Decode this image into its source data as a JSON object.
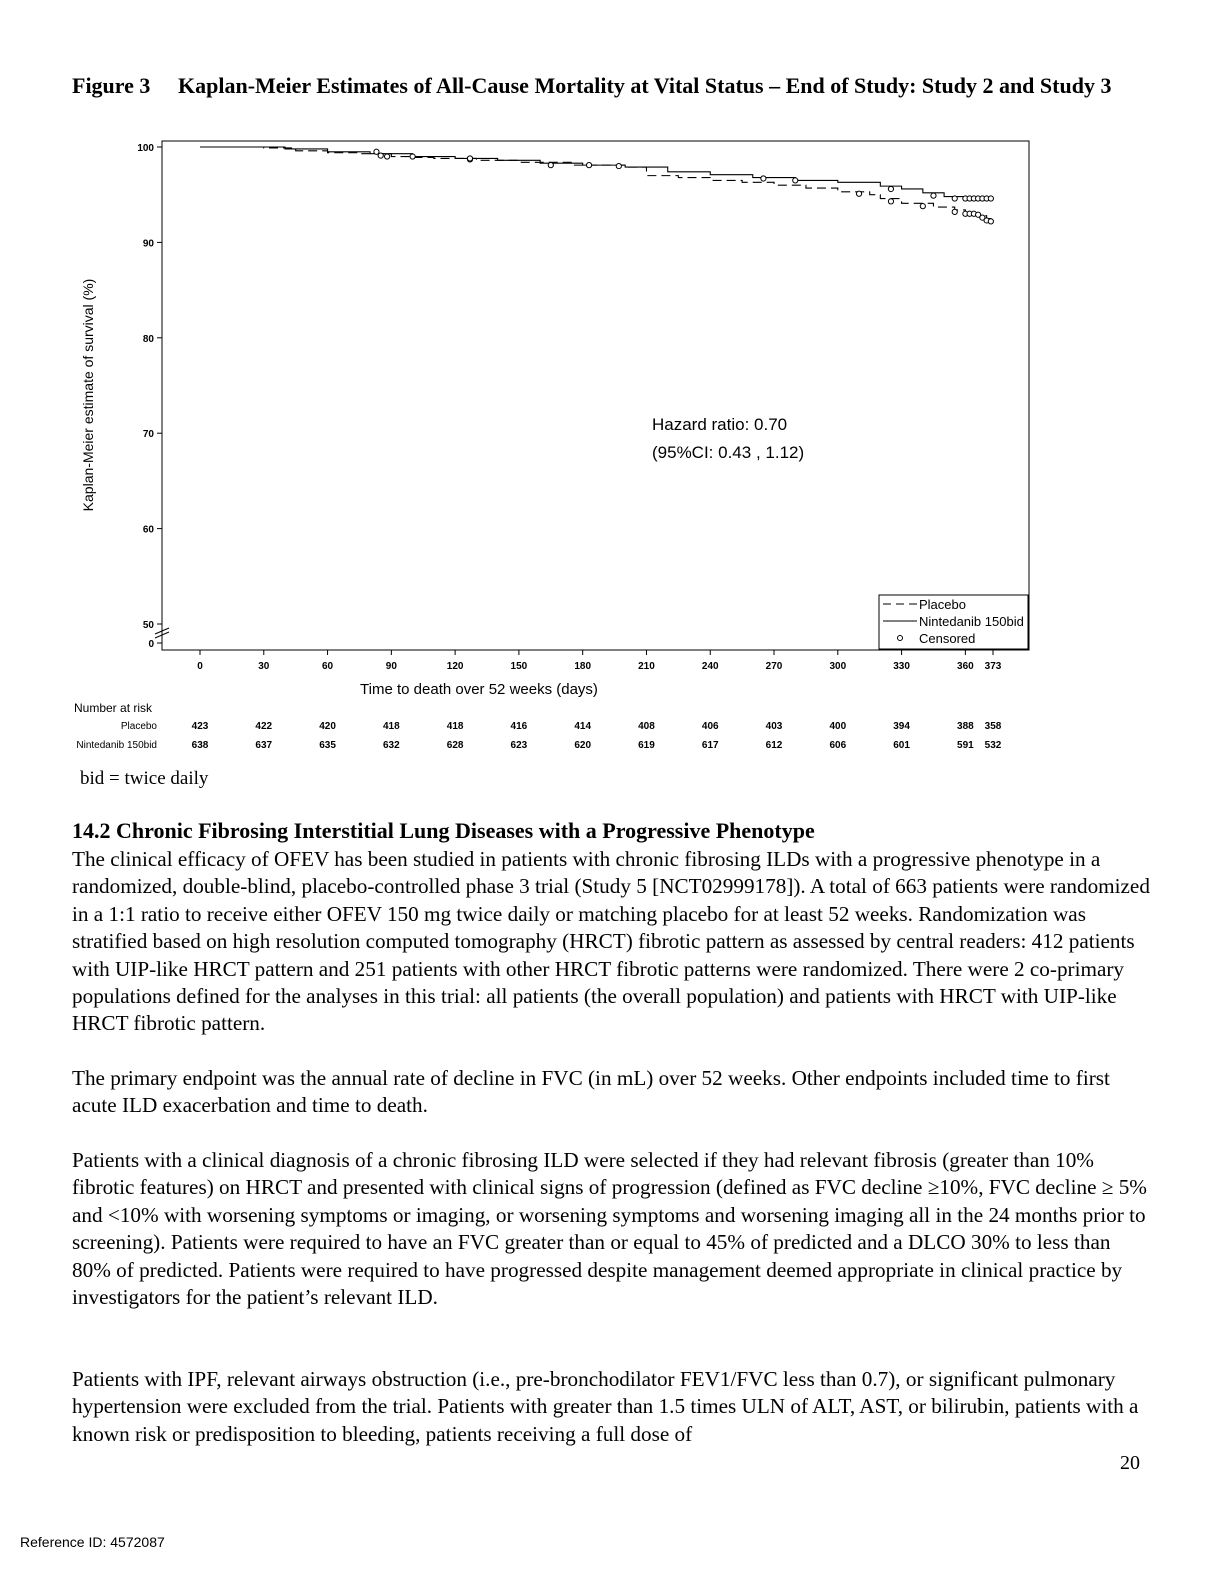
{
  "figure": {
    "number": "Figure 3",
    "title": "Kaplan-Meier Estimates of All-Cause Mortality at Vital Status – End of Study: Study 2 and Study 3"
  },
  "chart_data": {
    "type": "line",
    "title": "",
    "xlabel": "Time to death over 52 weeks (days)",
    "ylabel": "Kaplan-Meier estimate of survival (%)",
    "x_ticks": [
      "0",
      "30",
      "60",
      "90",
      "120",
      "150",
      "180",
      "210",
      "240",
      "270",
      "300",
      "330",
      "360",
      "373"
    ],
    "y_ticks": [
      "0",
      "50",
      "60",
      "70",
      "80",
      "90",
      "100"
    ],
    "ylim": [
      50,
      100
    ],
    "xlim": [
      0,
      373
    ],
    "y_axis_break": true,
    "annotation": {
      "line1": "Hazard ratio: 0.70",
      "line2": "(95%CI: 0.43 , 1.12)"
    },
    "legend": {
      "placement": "bottom-right",
      "entries": [
        "Placebo",
        "Nintedanib 150bid",
        "Censored"
      ]
    },
    "series": [
      {
        "name": "Placebo",
        "style": "dashed",
        "x": [
          0,
          20,
          30,
          45,
          60,
          75,
          90,
          100,
          110,
          130,
          150,
          175,
          200,
          210,
          225,
          240,
          255,
          270,
          285,
          300,
          315,
          320,
          330,
          345,
          355,
          360,
          365,
          370,
          373
        ],
        "y": [
          100,
          100,
          99.9,
          99.6,
          99.4,
          99.3,
          99.0,
          98.9,
          98.8,
          98.6,
          98.4,
          98.1,
          97.9,
          97.0,
          96.8,
          96.5,
          96.3,
          96.0,
          95.7,
          95.3,
          95.0,
          94.6,
          94.1,
          93.7,
          93.4,
          93.1,
          92.8,
          92.5,
          92.2
        ]
      },
      {
        "name": "Nintedanib 150bid",
        "style": "solid",
        "x": [
          0,
          20,
          40,
          60,
          80,
          100,
          120,
          140,
          160,
          180,
          200,
          220,
          240,
          260,
          280,
          300,
          320,
          330,
          340,
          350,
          360,
          373
        ],
        "y": [
          100,
          100,
          99.8,
          99.5,
          99.3,
          99.0,
          98.8,
          98.6,
          98.3,
          98.1,
          97.9,
          97.4,
          97.1,
          96.8,
          96.5,
          96.3,
          95.9,
          95.6,
          95.2,
          94.8,
          94.6,
          94.5
        ]
      }
    ],
    "censored": [
      {
        "series": "Placebo",
        "x": [
          85,
          88,
          127,
          310,
          325,
          340,
          355,
          360,
          362,
          364,
          366,
          368,
          370,
          372
        ],
        "y": [
          99.1,
          99.0,
          98.7,
          95.1,
          94.3,
          93.8,
          93.2,
          93.0,
          93.0,
          93.0,
          92.9,
          92.6,
          92.3,
          92.2
        ]
      },
      {
        "series": "Nintedanib 150bid",
        "x": [
          83,
          100,
          127,
          165,
          183,
          197,
          265,
          280,
          325,
          345,
          355,
          360,
          362,
          364,
          366,
          368,
          370,
          372
        ],
        "y": [
          99.5,
          99.0,
          98.8,
          98.1,
          98.1,
          98.0,
          96.7,
          96.5,
          95.6,
          94.9,
          94.6,
          94.6,
          94.6,
          94.6,
          94.6,
          94.6,
          94.6,
          94.6
        ]
      }
    ],
    "number_at_risk": {
      "label": "Number at risk",
      "rows": [
        {
          "name": "Placebo",
          "values": [
            "423",
            "422",
            "420",
            "418",
            "418",
            "416",
            "414",
            "408",
            "406",
            "403",
            "400",
            "394",
            "388",
            "358"
          ]
        },
        {
          "name": "Nintedanib 150bid",
          "values": [
            "638",
            "637",
            "635",
            "632",
            "628",
            "623",
            "620",
            "619",
            "617",
            "612",
            "606",
            "601",
            "591",
            "532"
          ]
        }
      ]
    }
  },
  "bid_note": "bid = twice daily",
  "section": {
    "heading": "14.2  Chronic Fibrosing Interstitial Lung Diseases with a Progressive Phenotype",
    "paragraphs": [
      "The clinical efficacy of OFEV has been studied in patients with chronic fibrosing ILDs with a progressive phenotype in a randomized, double-blind, placebo-controlled phase 3 trial (Study 5 [NCT02999178]). A total of 663 patients were randomized in a 1:1 ratio to receive either OFEV 150 mg twice daily or matching placebo for at least 52 weeks. Randomization was stratified based on high resolution computed tomography (HRCT) fibrotic pattern as assessed by central readers: 412 patients with UIP-like HRCT pattern and 251 patients with other HRCT fibrotic patterns were randomized. There were 2 co-primary populations defined for the analyses in this trial: all patients (the overall population) and patients with HRCT with UIP-like HRCT fibrotic pattern.",
      "The primary endpoint was the annual rate of decline in FVC (in mL) over 52 weeks. Other endpoints included time to first acute ILD exacerbation and time to death.",
      "Patients with a clinical diagnosis of a chronic fibrosing ILD were selected if they had relevant fibrosis (greater than 10% fibrotic features) on HRCT and presented with clinical signs of progression (defined as FVC decline ≥10%, FVC decline ≥ 5% and <10% with worsening symptoms or imaging, or worsening symptoms and worsening imaging all in the 24 months prior to screening). Patients were required to have an FVC greater than or equal to 45% of predicted and a DLCO 30% to less than 80% of predicted. Patients were required to have progressed despite management deemed appropriate in clinical practice by investigators for the patient’s relevant ILD.",
      "Patients with IPF, relevant airways obstruction (i.e., pre-bronchodilator FEV1/FVC less than 0.7), or significant pulmonary hypertension were excluded from the trial. Patients with greater than 1.5 times ULN of ALT, AST, or bilirubin, patients with a known risk or predisposition to bleeding, patients receiving a full dose of"
    ]
  },
  "page_number": "20",
  "reference_id": "Reference ID: 4572087"
}
